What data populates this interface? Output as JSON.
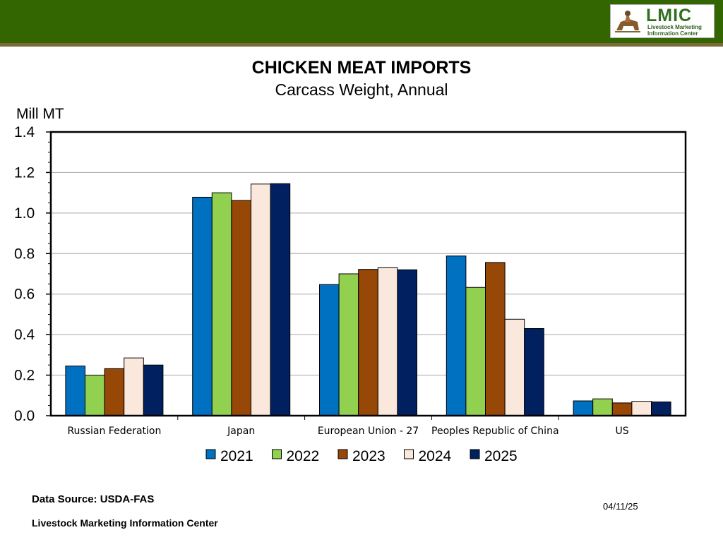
{
  "header": {
    "logo_text": "LMIC",
    "logo_sub_1": "Livestock Marketing",
    "logo_sub_2": "Information Center",
    "logo_icon": "cattle-rider-icon"
  },
  "chart_data": {
    "type": "bar",
    "title": "CHICKEN MEAT IMPORTS",
    "subtitle": "Carcass Weight, Annual",
    "ylabel": "Mill MT",
    "xlabel": "",
    "ylim": [
      0,
      1.4
    ],
    "yticks": [
      "0.0",
      "0.2",
      "0.4",
      "0.6",
      "0.8",
      "1.0",
      "1.2",
      "1.4"
    ],
    "grid": true,
    "legend_position": "bottom",
    "categories": [
      "Russian Federation",
      "Japan",
      "European Union - 27",
      "Peoples Republic of China",
      "US"
    ],
    "series": [
      {
        "name": "2021",
        "color": "#0070c0",
        "values": [
          0.245,
          1.078,
          0.647,
          0.788,
          0.073
        ]
      },
      {
        "name": "2022",
        "color": "#92d050",
        "values": [
          0.2,
          1.1,
          0.7,
          0.633,
          0.083
        ]
      },
      {
        "name": "2023",
        "color": "#974706",
        "values": [
          0.232,
          1.062,
          0.722,
          0.756,
          0.063
        ]
      },
      {
        "name": "2024",
        "color": "#fbe8dc",
        "values": [
          0.285,
          1.143,
          0.73,
          0.476,
          0.071
        ]
      },
      {
        "name": "2025",
        "color": "#002060",
        "values": [
          0.25,
          1.145,
          0.72,
          0.43,
          0.068
        ]
      }
    ]
  },
  "footer": {
    "source": "Data Source:  USDA-FAS",
    "org": "Livestock Marketing Information Center",
    "date": "04/11/25"
  }
}
